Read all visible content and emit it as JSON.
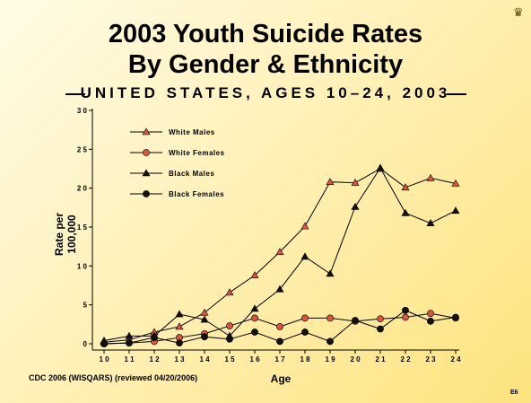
{
  "slide": {
    "title_line1": "2003 Youth Suicide Rates",
    "title_line2": "By Gender & Ethnicity",
    "subtitle": "UNITED STATES, AGES 10–24, 2003",
    "source": "CDC 2006 (WISQARS) (reviewed 04/20/2006)",
    "slide_number": "E6",
    "logo_icon": "crown-icon"
  },
  "chart_data": {
    "type": "line",
    "title": "2003 Youth Suicide Rates By Gender & Ethnicity",
    "subtitle": "UNITED STATES, AGES 10–24, 2003",
    "xlabel": "Age",
    "ylabel_line1": "Rate per",
    "ylabel_line2": "100,000",
    "x": [
      10,
      11,
      12,
      13,
      14,
      15,
      16,
      17,
      18,
      19,
      20,
      21,
      22,
      23,
      24
    ],
    "ylim": [
      0,
      30
    ],
    "yticks": [
      0,
      5,
      10,
      15,
      20,
      25,
      30
    ],
    "ytick_labels": [
      "0",
      "5",
      "1 0",
      "1 5",
      "2 0",
      "2 5",
      "3 0"
    ],
    "xtick_labels": [
      "1 0",
      "1 1",
      "1 2",
      "1 3",
      "1 4",
      "1 5",
      "1 6",
      "1 7",
      "1 8",
      "1 9",
      "2 0",
      "2 1",
      "2 2",
      "2 3",
      "2 4"
    ],
    "grid": false,
    "legend_position": "top-left",
    "series": [
      {
        "name": "White Males",
        "marker": "triangle",
        "color": "#d9553f",
        "values": [
          0.2,
          0.5,
          1.5,
          2.2,
          4.0,
          6.6,
          8.8,
          11.8,
          15.1,
          20.8,
          20.7,
          22.5,
          20.1,
          21.3,
          20.6
        ]
      },
      {
        "name": "White Females",
        "marker": "circle",
        "color": "#d9553f",
        "values": [
          0.0,
          0.1,
          0.3,
          0.8,
          1.3,
          2.3,
          3.3,
          2.2,
          3.3,
          3.3,
          2.9,
          3.2,
          3.4,
          3.9,
          3.3
        ]
      },
      {
        "name": "Black Males",
        "marker": "triangle",
        "color": "#111111",
        "values": [
          0.4,
          1.0,
          1.0,
          3.8,
          3.1,
          1.0,
          4.5,
          7.0,
          11.2,
          9.0,
          17.6,
          22.6,
          16.8,
          15.5,
          17.1
        ]
      },
      {
        "name": "Black Females",
        "marker": "circle",
        "color": "#111111",
        "values": [
          0.0,
          0.1,
          0.8,
          0.1,
          0.9,
          0.6,
          1.5,
          0.3,
          1.5,
          0.3,
          3.0,
          1.9,
          4.3,
          2.9,
          3.4
        ]
      }
    ]
  }
}
